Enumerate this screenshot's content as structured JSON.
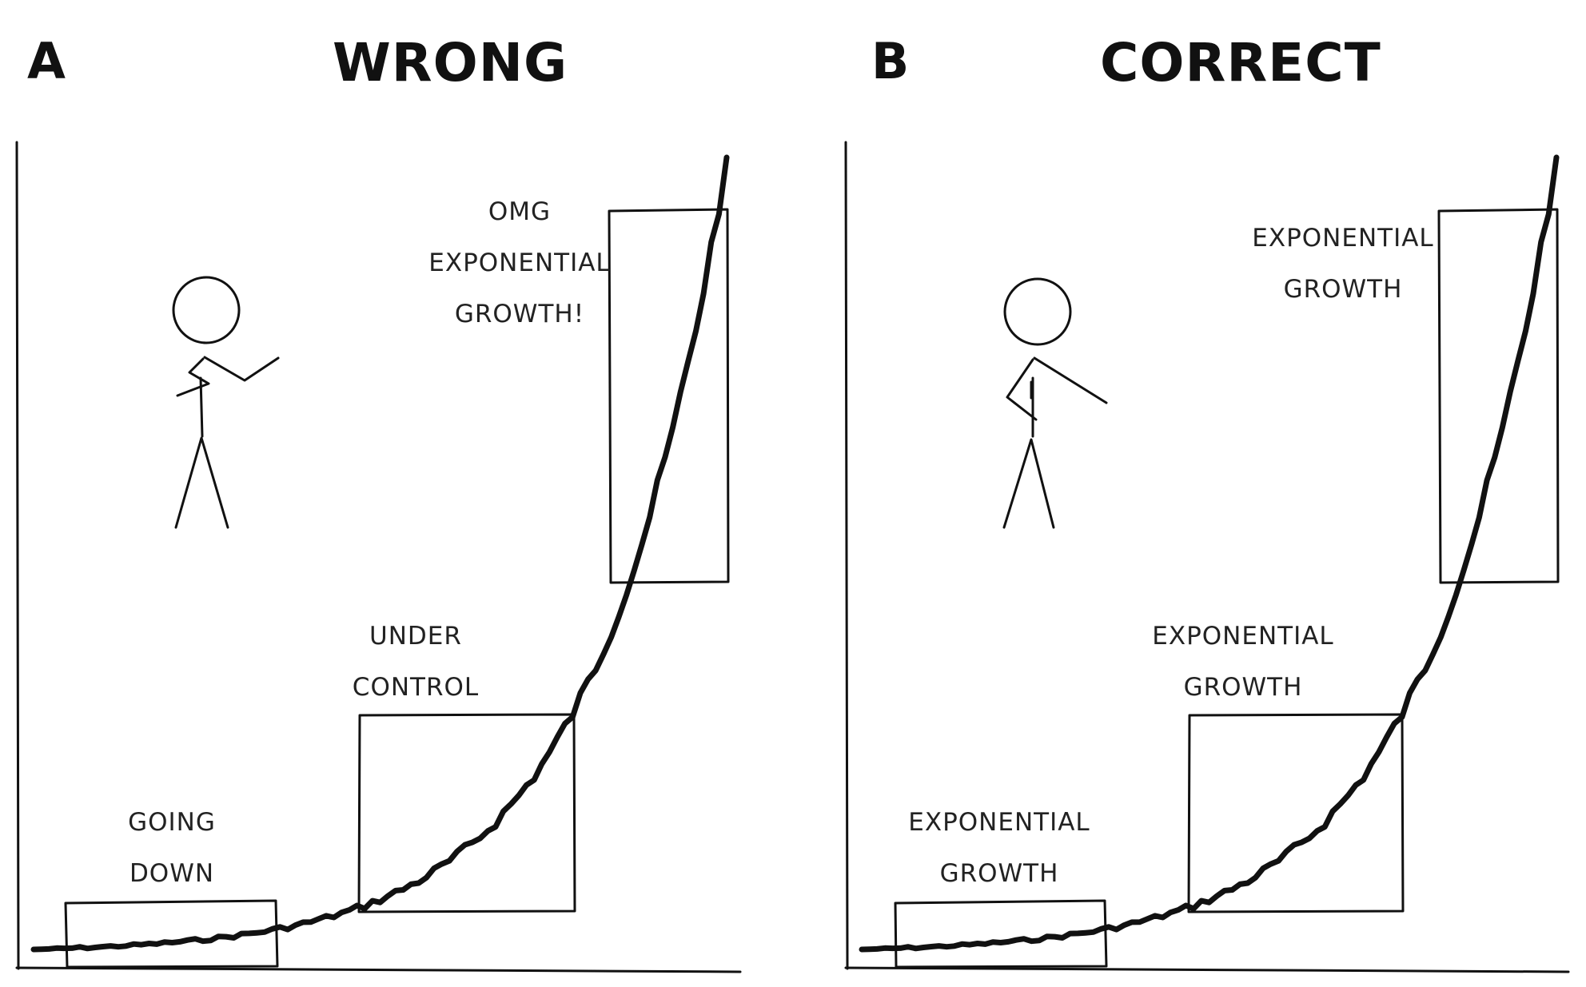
{
  "panels": [
    {
      "letter": "A",
      "title": "WRONG",
      "annotations": {
        "small": [
          "GOING",
          "DOWN"
        ],
        "medium": [
          "UNDER",
          "CONTROL"
        ],
        "large": [
          "OMG",
          "EXPONENTIAL",
          "GROWTH!"
        ]
      }
    },
    {
      "letter": "B",
      "title": "CORRECT",
      "annotations": {
        "small": [
          "EXPONENTIAL",
          "GROWTH"
        ],
        "medium": [
          "EXPONENTIAL",
          "GROWTH"
        ],
        "large": [
          "EXPONENTIAL",
          "GROWTH"
        ]
      }
    }
  ],
  "colors": {
    "ink": "#111111",
    "background": "#ffffff"
  }
}
